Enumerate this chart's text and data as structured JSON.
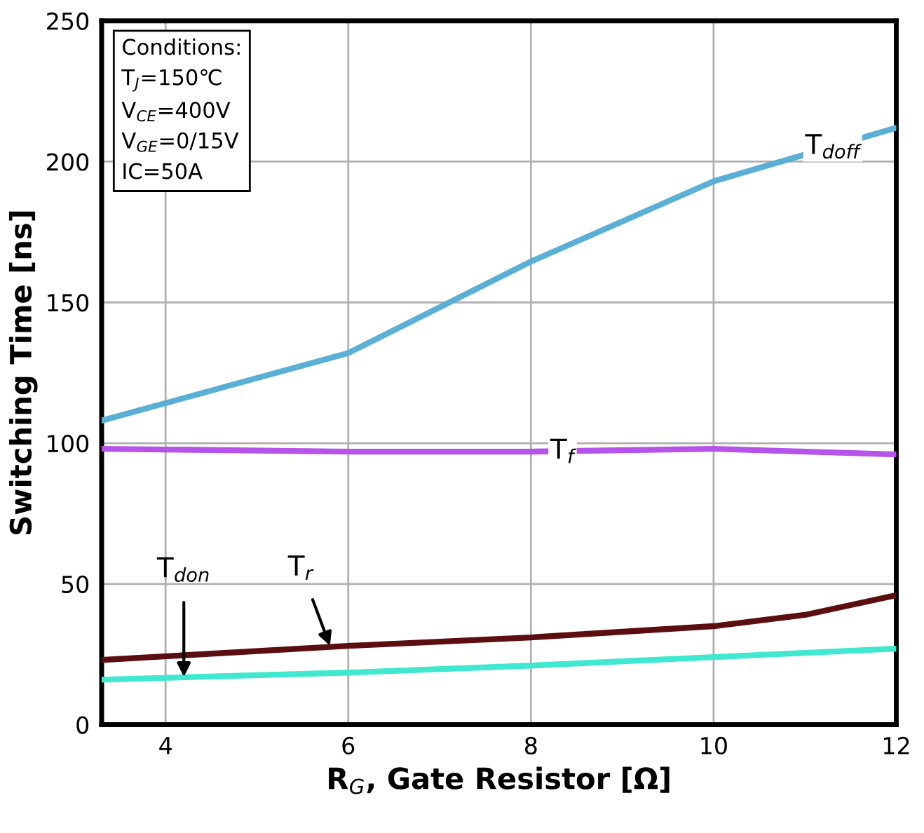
{
  "chart_data": {
    "type": "line",
    "xlabel": "R$_{G}$, Gate Resistor [Ω]",
    "ylabel": "Switching Time [ns]",
    "xlim": [
      3.3,
      12
    ],
    "xticks": [
      4,
      6,
      8,
      10,
      12
    ],
    "ylim": [
      0,
      250
    ],
    "yticks": [
      0,
      50,
      100,
      150,
      200,
      250
    ],
    "grid": true,
    "marker": "none",
    "line_style": "solid",
    "series": [
      {
        "name": "T$_{doff}$",
        "color": "#5aafd6",
        "x": [
          3.3,
          6,
          8,
          10,
          12
        ],
        "values": [
          108,
          132,
          164.5,
          193,
          212
        ]
      },
      {
        "name": "T$_{f}$",
        "color": "#b653e8",
        "x": [
          3.3,
          6,
          8,
          10,
          12
        ],
        "values": [
          98,
          97,
          97,
          98,
          96
        ]
      },
      {
        "color": "#5c0d10",
        "x": [
          3.3,
          6,
          8,
          10,
          11,
          12
        ],
        "values": [
          23,
          28,
          31,
          35,
          39,
          46
        ]
      },
      {
        "color": "#40e8d0",
        "x": [
          3.3,
          6,
          8,
          10,
          12
        ],
        "values": [
          16,
          18.5,
          21,
          24,
          27
        ]
      }
    ],
    "annotations": [
      "Conditions:\nT$_{J}$=150℃\nV$_{CE}$=400V\nV$_{GE}$=0/15V\nIC=50A",
      {
        "text": "T$_{don}$",
        "x": 4.2,
        "y": 17
      },
      {
        "text": "T$_{r}$",
        "x": 5.8,
        "y": 28
      }
    ]
  }
}
